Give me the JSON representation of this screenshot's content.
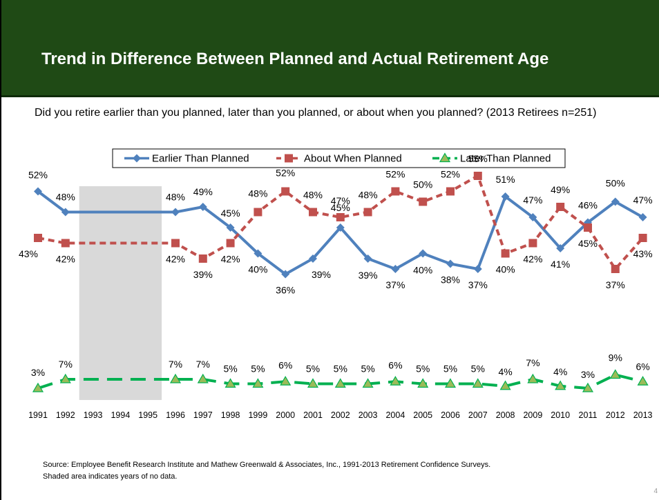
{
  "title": "Trend in Difference Between Planned and Actual Retirement Age",
  "question": "Did you retire earlier than you planned, later than you planned, or about when you planned?  (2013 Retirees n=251)",
  "source": "Source:  Employee Benefit Research Institute and Mathew Greenwald & Associates, Inc., 1991-2013 Retirement Confidence Surveys.",
  "source_note": "Shaded area indicates years of no data.",
  "page_number": "4",
  "colors": {
    "header": "#1f4a15",
    "earlier": "#4f81bd",
    "about": "#c0504d",
    "later": "#00b050",
    "shade": "#d9d9d9"
  },
  "chart_data": {
    "type": "line",
    "categories": [
      "1991",
      "1992",
      "1993",
      "1994",
      "1995",
      "1996",
      "1997",
      "1998",
      "1999",
      "2000",
      "2001",
      "2002",
      "2003",
      "2004",
      "2005",
      "2006",
      "2007",
      "2008",
      "2009",
      "2010",
      "2011",
      "2012",
      "2013"
    ],
    "no_data_years": [
      "1993",
      "1994",
      "1995"
    ],
    "series": [
      {
        "name": "Earlier Than Planned",
        "marker": "diamond",
        "line": "solid",
        "values": [
          52,
          48,
          null,
          null,
          null,
          48,
          49,
          45,
          40,
          36,
          39,
          45,
          39,
          37,
          40,
          38,
          37,
          51,
          47,
          41,
          46,
          50,
          47
        ]
      },
      {
        "name": "About When Planned",
        "marker": "square",
        "line": "dashed",
        "values": [
          43,
          42,
          null,
          null,
          null,
          42,
          39,
          42,
          48,
          52,
          48,
          47,
          48,
          52,
          50,
          52,
          55,
          40,
          42,
          49,
          45,
          37,
          43
        ]
      },
      {
        "name": "Later Than Planned",
        "marker": "triangle",
        "line": "long-dashed",
        "values": [
          3,
          7,
          null,
          null,
          null,
          7,
          7,
          5,
          5,
          6,
          5,
          5,
          5,
          6,
          5,
          5,
          5,
          4,
          7,
          4,
          3,
          9,
          6
        ]
      }
    ],
    "data_labels": true,
    "value_suffix": "%",
    "legend_position": "top",
    "grid": false
  }
}
